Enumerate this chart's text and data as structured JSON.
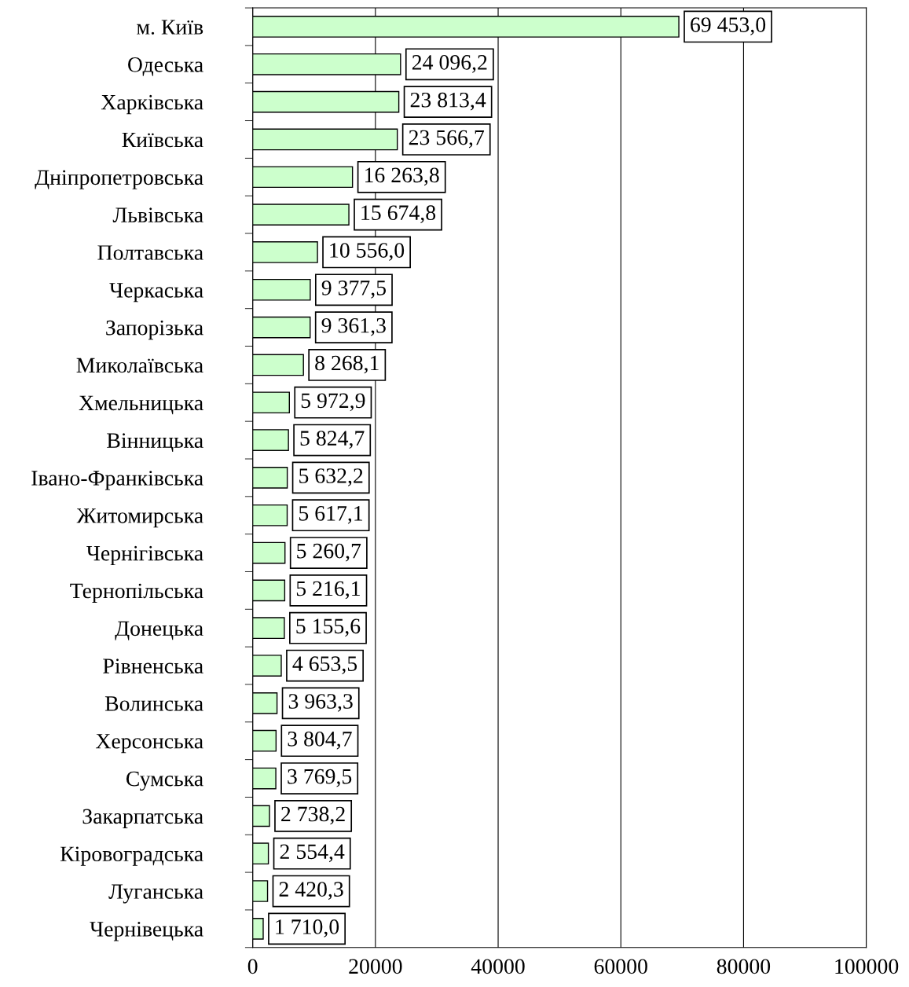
{
  "chart_data": {
    "type": "bar",
    "orientation": "horizontal",
    "categories": [
      "м. Київ",
      "Одеська",
      "Харківська",
      "Київська",
      "Дніпропетровська",
      "Львівська",
      "Полтавська",
      "Черкаська",
      "Запорізька",
      "Миколаївська",
      "Хмельницька",
      "Вінницька",
      "Івано-Франківська",
      "Житомирська",
      "Чернігівська",
      "Тернопільська",
      "Донецька",
      "Рівненська",
      "Волинська",
      "Херсонська",
      "Сумська",
      "Закарпатська",
      "Кіровоградська",
      "Луганська",
      "Чернівецька"
    ],
    "values": [
      69453.0,
      24096.2,
      23813.4,
      23566.7,
      16263.8,
      15674.8,
      10556.0,
      9377.5,
      9361.3,
      8268.1,
      5972.9,
      5824.7,
      5632.2,
      5617.1,
      5260.7,
      5216.1,
      5155.6,
      4653.5,
      3963.3,
      3804.7,
      3769.5,
      2738.2,
      2554.4,
      2420.3,
      1710.0
    ],
    "value_labels": [
      "69 453,0",
      "24 096,2",
      "23 813,4",
      "23 566,7",
      "16 263,8",
      "15 674,8",
      "10 556,0",
      "9 377,5",
      "9 361,3",
      "8 268,1",
      "5 972,9",
      "5 824,7",
      "5 632,2",
      "5 617,1",
      "5 260,7",
      "5 216,1",
      "5 155,6",
      "4 653,5",
      "3 963,3",
      "3 804,7",
      "3 769,5",
      "2 738,2",
      "2 554,4",
      "2 420,3",
      "1 710,0"
    ],
    "color": "#ccffcc",
    "xlim": [
      0,
      100000
    ],
    "xticks": [
      0,
      20000,
      40000,
      60000,
      80000,
      100000
    ],
    "grid": "x"
  }
}
